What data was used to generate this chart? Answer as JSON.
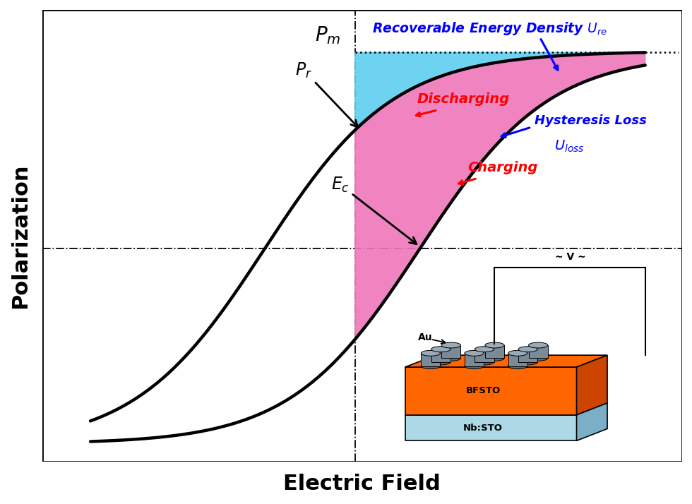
{
  "xlabel": "Electric Field",
  "ylabel": "Polarization",
  "xlabel_fontsize": 22,
  "ylabel_fontsize": 22,
  "cyan_fill_color": "#55CCEE",
  "magenta_fill_color": "#EE77BB",
  "pm_label": "$P_m$",
  "pr_label": "$P_r$",
  "ec_label": "$E_c$",
  "recoverable_text": "Recoverable Energy Density $U_{re}$",
  "hysteresis_loss_text1": "Hysteresis Loss",
  "hysteresis_loss_text2": "$U_{loss}$",
  "discharging_text": "Discharging",
  "charging_text": "Charging",
  "bfsto_label": "BFSTO",
  "nbsto_label": "Nb:STO",
  "au_label": "Au",
  "voltage_label": "~ V ~",
  "orange_color": "#FF6600",
  "orange_dark": "#CC4400",
  "blue_color": "#ADD8E6",
  "blue_dark": "#7BAFC8",
  "cylinder_color": "#7A8A96",
  "cylinder_top": "#9AAAB6",
  "cylinder_bot": "#5A6A76",
  "xlim": [
    -1.1,
    1.15
  ],
  "ylim": [
    -1.0,
    1.12
  ]
}
